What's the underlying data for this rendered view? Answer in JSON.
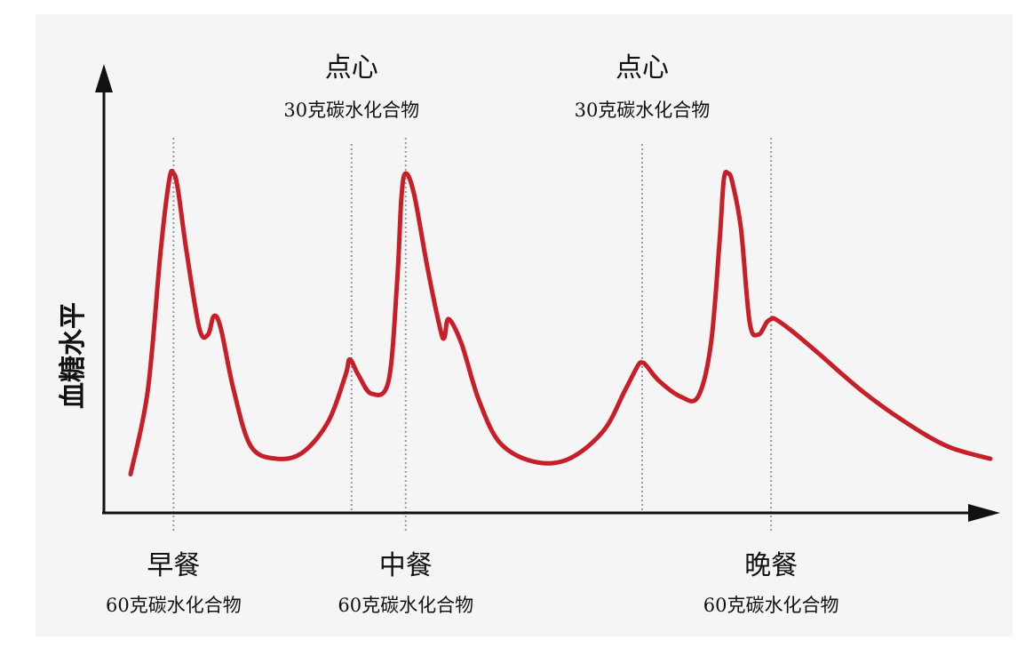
{
  "chart_data": {
    "type": "line",
    "ylabel": "血糖水平",
    "xlabel": "",
    "grid": false,
    "legend": "none",
    "colors": {
      "curve": "#c81e28",
      "axis": "#111111",
      "guide": "#999999"
    },
    "series": [
      {
        "x": [
          0.0,
          0.02,
          0.035,
          0.045,
          0.05,
          0.055,
          0.065,
          0.08,
          0.09,
          0.097,
          0.105,
          0.12,
          0.14,
          0.17,
          0.2,
          0.23,
          0.25,
          0.255,
          0.265,
          0.28,
          0.3,
          0.31,
          0.315,
          0.32,
          0.33,
          0.345,
          0.36,
          0.365,
          0.37,
          0.385,
          0.405,
          0.43,
          0.47,
          0.51,
          0.55,
          0.575,
          0.59,
          0.595,
          0.6,
          0.615,
          0.64,
          0.66,
          0.675,
          0.685,
          0.69,
          0.695,
          0.7,
          0.71,
          0.72,
          0.73,
          0.74,
          0.745,
          0.75,
          0.77,
          0.8,
          0.85,
          0.9,
          0.95,
          1.0
        ],
        "y": [
          0.03,
          0.3,
          0.75,
          0.98,
          1.0,
          0.95,
          0.75,
          0.5,
          0.48,
          0.54,
          0.5,
          0.3,
          0.12,
          0.08,
          0.1,
          0.2,
          0.35,
          0.4,
          0.35,
          0.29,
          0.33,
          0.65,
          0.92,
          1.0,
          0.93,
          0.7,
          0.5,
          0.47,
          0.53,
          0.45,
          0.27,
          0.13,
          0.07,
          0.08,
          0.17,
          0.3,
          0.38,
          0.39,
          0.38,
          0.33,
          0.28,
          0.28,
          0.45,
          0.78,
          0.98,
          1.0,
          0.97,
          0.82,
          0.52,
          0.48,
          0.52,
          0.53,
          0.53,
          0.49,
          0.42,
          0.3,
          0.2,
          0.12,
          0.08
        ]
      }
    ],
    "events": [
      {
        "x": 0.05,
        "type": "meal",
        "name": "早餐",
        "detail": "60克碳水化合物"
      },
      {
        "x": 0.257,
        "type": "snack",
        "name": "点心",
        "detail": "30克碳水化合物"
      },
      {
        "x": 0.32,
        "type": "meal",
        "name": "中餐",
        "detail": "60克碳水化合物"
      },
      {
        "x": 0.595,
        "type": "snack",
        "name": "点心",
        "detail": "30克碳水化合物"
      },
      {
        "x": 0.745,
        "type": "meal",
        "name": "晚餐",
        "detail": "60克碳水化合物"
      }
    ]
  }
}
